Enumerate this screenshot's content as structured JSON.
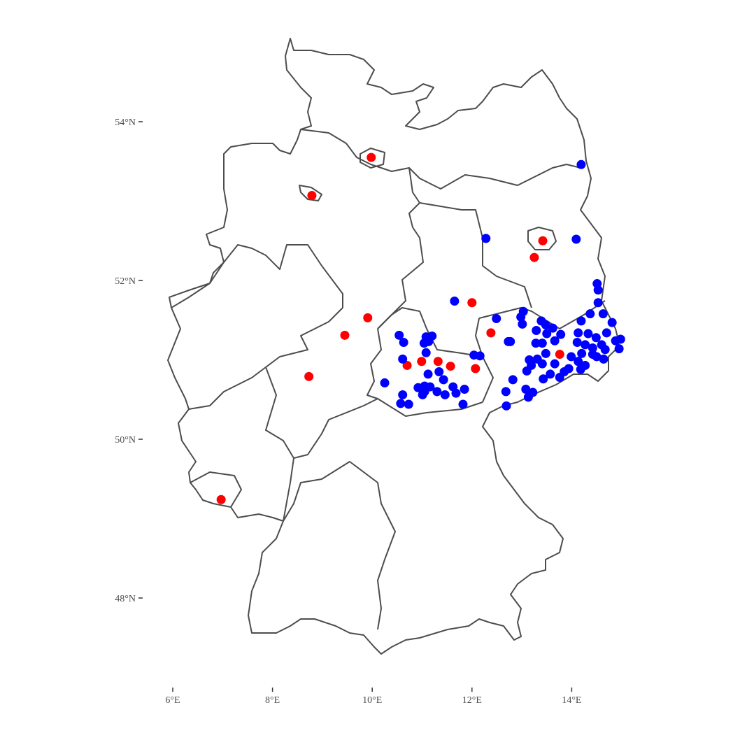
{
  "chart_data": {
    "type": "scatter",
    "title": "",
    "xlabel": "",
    "ylabel": "",
    "xlim": [
      5.6,
      15.6
    ],
    "ylim": [
      47.0,
      55.2
    ],
    "grid": false,
    "x_ticks": [
      {
        "value": 6,
        "label": "6°E"
      },
      {
        "value": 8,
        "label": "8°E"
      },
      {
        "value": 10,
        "label": "10°E"
      },
      {
        "value": 12,
        "label": "12°E"
      },
      {
        "value": 14,
        "label": "14°E"
      }
    ],
    "y_ticks": [
      {
        "value": 48,
        "label": "48°N"
      },
      {
        "value": 50,
        "label": "50°N"
      },
      {
        "value": 52,
        "label": "52°N"
      },
      {
        "value": 54,
        "label": "54°N"
      }
    ],
    "basemap": "Germany federal state borders",
    "series": [
      {
        "color": "#ff0000",
        "points": [
          [
            9.98,
            53.55
          ],
          [
            8.79,
            53.07
          ],
          [
            13.42,
            52.5
          ],
          [
            13.25,
            52.29
          ],
          [
            12.0,
            51.72
          ],
          [
            9.91,
            51.53
          ],
          [
            9.45,
            51.31
          ],
          [
            12.38,
            51.34
          ],
          [
            13.76,
            51.07
          ],
          [
            10.99,
            50.98
          ],
          [
            10.7,
            50.93
          ],
          [
            11.32,
            50.98
          ],
          [
            11.57,
            50.92
          ],
          [
            12.07,
            50.89
          ],
          [
            8.73,
            50.79
          ],
          [
            6.97,
            49.24
          ]
        ]
      },
      {
        "color": "#0000ff",
        "points": [
          [
            11.65,
            51.74
          ],
          [
            12.49,
            51.52
          ],
          [
            12.73,
            51.23
          ],
          [
            10.54,
            51.31
          ],
          [
            10.63,
            51.22
          ],
          [
            11.08,
            51.29
          ],
          [
            11.2,
            51.3
          ],
          [
            11.04,
            51.21
          ],
          [
            11.13,
            51.23
          ],
          [
            11.08,
            51.09
          ],
          [
            10.61,
            51.01
          ],
          [
            12.04,
            51.06
          ],
          [
            12.16,
            51.05
          ],
          [
            10.25,
            50.71
          ],
          [
            11.12,
            50.82
          ],
          [
            11.34,
            50.85
          ],
          [
            11.43,
            50.75
          ],
          [
            10.92,
            50.65
          ],
          [
            11.05,
            50.67
          ],
          [
            11.16,
            50.66
          ],
          [
            11.01,
            50.56
          ],
          [
            11.05,
            50.6
          ],
          [
            11.3,
            50.6
          ],
          [
            11.46,
            50.56
          ],
          [
            11.62,
            50.66
          ],
          [
            11.68,
            50.58
          ],
          [
            11.85,
            50.63
          ],
          [
            10.61,
            50.56
          ],
          [
            10.57,
            50.45
          ],
          [
            10.73,
            50.44
          ],
          [
            11.82,
            50.44
          ],
          [
            14.51,
            51.96
          ],
          [
            14.53,
            51.88
          ],
          [
            14.53,
            51.72
          ],
          [
            14.37,
            51.58
          ],
          [
            14.63,
            51.58
          ],
          [
            14.81,
            51.47
          ],
          [
            14.19,
            51.49
          ],
          [
            13.03,
            51.61
          ],
          [
            12.98,
            51.54
          ],
          [
            13.01,
            51.45
          ],
          [
            13.39,
            51.49
          ],
          [
            13.48,
            51.44
          ],
          [
            13.62,
            51.4
          ],
          [
            13.29,
            51.37
          ],
          [
            13.5,
            51.33
          ],
          [
            13.66,
            51.24
          ],
          [
            13.78,
            51.32
          ],
          [
            14.13,
            51.34
          ],
          [
            14.33,
            51.33
          ],
          [
            14.49,
            51.28
          ],
          [
            14.7,
            51.34
          ],
          [
            14.11,
            51.22
          ],
          [
            14.27,
            51.19
          ],
          [
            14.42,
            51.15
          ],
          [
            14.6,
            51.19
          ],
          [
            14.67,
            51.13
          ],
          [
            14.88,
            51.24
          ],
          [
            14.98,
            51.26
          ],
          [
            14.95,
            51.14
          ],
          [
            14.2,
            51.08
          ],
          [
            14.42,
            51.07
          ],
          [
            14.64,
            51.01
          ],
          [
            14.5,
            51.04
          ],
          [
            12.77,
            51.23
          ],
          [
            13.28,
            51.21
          ],
          [
            13.41,
            51.21
          ],
          [
            13.48,
            51.08
          ],
          [
            13.15,
            51.0
          ],
          [
            13.31,
            51.01
          ],
          [
            13.19,
            50.93
          ],
          [
            13.41,
            50.95
          ],
          [
            13.1,
            50.86
          ],
          [
            13.66,
            50.95
          ],
          [
            13.99,
            51.04
          ],
          [
            14.13,
            50.98
          ],
          [
            14.27,
            50.93
          ],
          [
            13.94,
            50.89
          ],
          [
            13.85,
            50.85
          ],
          [
            13.76,
            50.78
          ],
          [
            13.57,
            50.82
          ],
          [
            13.43,
            50.76
          ],
          [
            14.18,
            50.88
          ],
          [
            12.82,
            50.75
          ],
          [
            12.68,
            50.6
          ],
          [
            13.08,
            50.63
          ],
          [
            13.22,
            50.59
          ],
          [
            13.13,
            50.53
          ],
          [
            12.69,
            50.42
          ],
          [
            12.28,
            52.53
          ],
          [
            14.09,
            52.52
          ],
          [
            14.19,
            53.46
          ]
        ]
      }
    ]
  }
}
